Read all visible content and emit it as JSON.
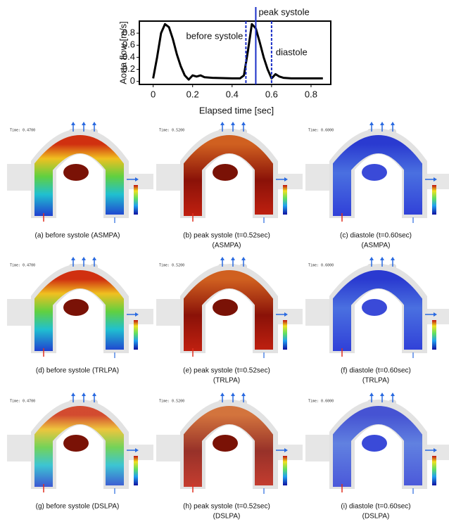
{
  "chart_data": {
    "type": "line",
    "xlabel": "Elapsed time [sec]",
    "ylabel": "Aorta flow [m/s]",
    "x": [
      0,
      0.02,
      0.04,
      0.06,
      0.08,
      0.1,
      0.12,
      0.14,
      0.16,
      0.18,
      0.2,
      0.22,
      0.24,
      0.26,
      0.3,
      0.4,
      0.44,
      0.46,
      0.48,
      0.5,
      0.52,
      0.54,
      0.56,
      0.58,
      0.6,
      0.62,
      0.64,
      0.66,
      0.7,
      0.8,
      0.86
    ],
    "series": [
      {
        "color": "#000000",
        "values": [
          0.05,
          0.4,
          0.8,
          0.95,
          0.9,
          0.7,
          0.45,
          0.25,
          0.1,
          0.03,
          0.1,
          0.08,
          0.1,
          0.07,
          0.06,
          0.05,
          0.05,
          0.1,
          0.5,
          0.95,
          0.88,
          0.65,
          0.4,
          0.2,
          0.05,
          0.12,
          0.08,
          0.06,
          0.05,
          0.05,
          0.05
        ]
      }
    ],
    "markers": [
      {
        "x": 0.47,
        "label": "before systole",
        "style": "dashed"
      },
      {
        "x": 0.52,
        "label": "peak systole",
        "style": "solid"
      },
      {
        "x": 0.6,
        "label": "diastole",
        "style": "dashed"
      }
    ],
    "marker_color": "#1a2fc8",
    "xlim": [
      -0.07,
      0.9
    ],
    "ylim": [
      -0.05,
      1.0
    ],
    "xticks": [
      0,
      0.2,
      0.4,
      0.6,
      0.8
    ],
    "yticks": [
      0,
      0.2,
      0.4,
      0.6,
      0.8
    ]
  },
  "panels": [
    {
      "time": "Time: 0.4700",
      "caption": [
        "(a) before systole (ASMPA)"
      ]
    },
    {
      "time": "Time: 0.5200",
      "caption": [
        "(b) peak systole (t=0.52sec)",
        "(ASMPA)"
      ]
    },
    {
      "time": "Time: 0.6000",
      "caption": [
        "(c) diastole (t=0.60sec)",
        "(ASMPA)"
      ]
    },
    {
      "time": "Time: 0.4700",
      "caption": [
        "(d) before systole (TRLPA)"
      ]
    },
    {
      "time": "Time: 0.5200",
      "caption": [
        "(e) peak systole (t=0.52sec)",
        "(TRLPA)"
      ]
    },
    {
      "time": "Time: 0.6000",
      "caption": [
        "(f) diastole (t=0.60sec)",
        "(TRLPA)"
      ]
    },
    {
      "time": "Time: 0.4700",
      "caption": [
        "(g) before systole (DSLPA)"
      ]
    },
    {
      "time": "Time: 0.5200",
      "caption": [
        "(h) peak systole (t=0.52sec)",
        "(DSLPA)"
      ]
    },
    {
      "time": "Time: 0.6000",
      "caption": [
        "(i) diastole (t=0.60sec)",
        "(DSLPA)"
      ]
    }
  ]
}
